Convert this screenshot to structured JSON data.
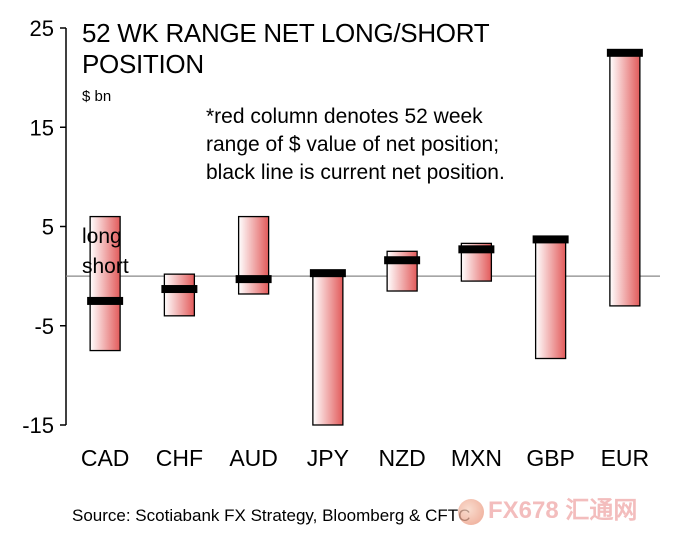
{
  "title_line1": "52 WK RANGE  NET LONG/SHORT",
  "title_line2": "POSITION",
  "unit": "$ bn",
  "note_line1": "*red column denotes 52 week",
  "note_line2": "range of $ value of net position;",
  "note_line3": "black line is current net position.",
  "long_label": "long",
  "short_label": "short",
  "source": "Source: Scotiabank FX Strategy, Bloomberg & CFTC",
  "watermark": "FX678 汇通网",
  "colors": {
    "bar_light": "#ffffff",
    "bar_dark": "#e25a5a",
    "marker": "#000000",
    "zero_line": "#888888"
  },
  "chart_data": {
    "type": "bar",
    "subtype": "floating range with current-value marker",
    "ylim": [
      -15,
      25
    ],
    "yticks": [
      25,
      15,
      5,
      -5,
      -15
    ],
    "categories": [
      "CAD",
      "CHF",
      "AUD",
      "JPY",
      "NZD",
      "MXN",
      "GBP",
      "EUR"
    ],
    "series": [
      {
        "name": "52 week range",
        "values": [
          [
            -7.5,
            6
          ],
          [
            -4,
            0.2
          ],
          [
            -1.8,
            6
          ],
          [
            -15,
            0.5
          ],
          [
            -1.5,
            2.5
          ],
          [
            -0.5,
            3.3
          ],
          [
            -8.3,
            4
          ],
          [
            -3,
            22.5
          ]
        ]
      },
      {
        "name": "current net position",
        "values": [
          -2.5,
          -1.3,
          -0.3,
          0.3,
          1.6,
          2.7,
          3.7,
          22.5
        ]
      }
    ],
    "grid": false
  }
}
